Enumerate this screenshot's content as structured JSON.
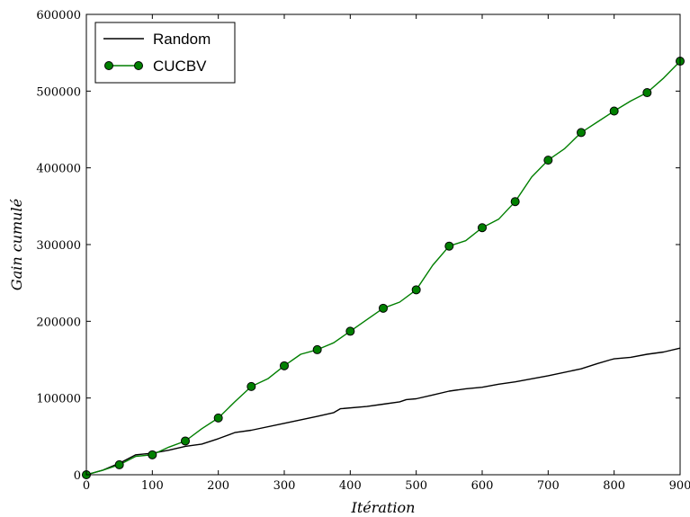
{
  "chart_data": {
    "type": "line",
    "xlabel": "Itération",
    "ylabel": "Gain cumulé",
    "xlim": [
      0,
      900
    ],
    "ylim": [
      0,
      600000
    ],
    "x_ticks": [
      0,
      100,
      200,
      300,
      400,
      500,
      600,
      700,
      800,
      900
    ],
    "y_ticks": [
      0,
      100000,
      200000,
      300000,
      400000,
      500000,
      600000
    ],
    "x_tick_labels": [
      "0",
      "100",
      "200",
      "300",
      "400",
      "500",
      "600",
      "700",
      "800",
      "900"
    ],
    "y_tick_labels": [
      "0",
      "100000",
      "200000",
      "300000",
      "400000",
      "500000",
      "600000"
    ],
    "grid": false,
    "legend_position": "top-left",
    "series": [
      {
        "name": "Random",
        "color": "#000000",
        "marker": "none",
        "x": [
          0,
          25,
          50,
          75,
          100,
          125,
          150,
          175,
          200,
          225,
          250,
          300,
          350,
          375,
          385,
          425,
          450,
          475,
          485,
          500,
          525,
          550,
          575,
          600,
          625,
          650,
          700,
          750,
          775,
          795,
          800,
          825,
          850,
          875,
          900
        ],
        "y": [
          0,
          6000,
          15000,
          26000,
          28000,
          32000,
          37000,
          40000,
          47000,
          55000,
          58000,
          67000,
          76000,
          81000,
          86000,
          89000,
          92000,
          95000,
          98000,
          99000,
          104000,
          109000,
          112000,
          114000,
          118000,
          121000,
          129000,
          138000,
          145000,
          150000,
          151000,
          153000,
          157000,
          160000,
          165000
        ]
      },
      {
        "name": "CUCBV",
        "color": "#007f00",
        "marker": "circle",
        "marker_color": "#008000",
        "x": [
          0,
          25,
          50,
          75,
          100,
          125,
          150,
          175,
          200,
          225,
          250,
          275,
          300,
          325,
          350,
          375,
          400,
          425,
          450,
          475,
          500,
          525,
          550,
          575,
          600,
          625,
          650,
          675,
          700,
          725,
          750,
          775,
          800,
          825,
          850,
          875,
          900
        ],
        "y": [
          0,
          6000,
          13000,
          24000,
          26000,
          36000,
          44000,
          60000,
          74000,
          95000,
          115000,
          125000,
          142000,
          157000,
          163000,
          172000,
          187000,
          202000,
          217000,
          225000,
          241000,
          273000,
          298000,
          305000,
          322000,
          333000,
          356000,
          388000,
          410000,
          425000,
          446000,
          460000,
          474000,
          487000,
          498000,
          517000,
          539000
        ],
        "markers": [
          [
            0,
            0
          ],
          [
            50,
            13000
          ],
          [
            100,
            26000
          ],
          [
            150,
            44000
          ],
          [
            200,
            74000
          ],
          [
            250,
            115000
          ],
          [
            300,
            142000
          ],
          [
            350,
            163000
          ],
          [
            400,
            187000
          ],
          [
            450,
            217000
          ],
          [
            500,
            241000
          ],
          [
            550,
            298000
          ],
          [
            600,
            322000
          ],
          [
            650,
            356000
          ],
          [
            700,
            410000
          ],
          [
            750,
            446000
          ],
          [
            800,
            474000
          ],
          [
            850,
            498000
          ],
          [
            900,
            539000
          ]
        ]
      }
    ]
  }
}
